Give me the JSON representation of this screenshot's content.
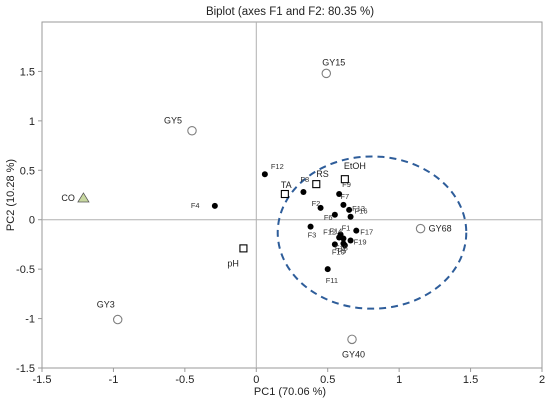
{
  "chart_data": {
    "type": "scatter",
    "title": "Biplot (axes F1 and F2: 80.35 %)",
    "xlabel": "PC1 (70.06 %)",
    "ylabel": "PC2 (10.28 %)",
    "xlim": [
      -1.5,
      2
    ],
    "ylim": [
      -1.5,
      2
    ],
    "xticks": [
      "-1.5",
      "-1",
      "-0.5",
      "0",
      "0.5",
      "1",
      "1.5",
      "2"
    ],
    "yticks": [
      "-1.5",
      "-1",
      "-0.5",
      "0",
      "0.5",
      "1",
      "1.5"
    ],
    "grid": false,
    "ellipse": {
      "cx": 0.81,
      "cy": -0.13,
      "rx": 0.66,
      "ry": 0.77,
      "style": "dashed",
      "color": "#2e5d9a"
    },
    "series": [
      {
        "marker": "filled-circle",
        "color": "#000000",
        "points": [
          {
            "label": "F1",
            "x": 0.59,
            "y": -0.15
          },
          {
            "label": "F2",
            "x": 0.45,
            "y": 0.12
          },
          {
            "label": "F3",
            "x": 0.38,
            "y": -0.07
          },
          {
            "label": "F4",
            "x": -0.29,
            "y": 0.14
          },
          {
            "label": "F5",
            "x": 0.61,
            "y": -0.24
          },
          {
            "label": "F6",
            "x": 0.55,
            "y": 0.05
          },
          {
            "label": "F7",
            "x": 0.61,
            "y": 0.15
          },
          {
            "label": "F8",
            "x": 0.33,
            "y": 0.28
          },
          {
            "label": "F9",
            "x": 0.58,
            "y": 0.26
          },
          {
            "label": "F10",
            "x": 0.55,
            "y": -0.25
          },
          {
            "label": "F11",
            "x": 0.5,
            "y": -0.5
          },
          {
            "label": "F12",
            "x": 0.06,
            "y": 0.46
          },
          {
            "label": "F12",
            "x": 0.58,
            "y": -0.18
          },
          {
            "label": "F13",
            "x": 0.65,
            "y": 0.1
          },
          {
            "label": "F14",
            "x": 0.61,
            "y": -0.19
          },
          {
            "label": "F16",
            "x": 0.66,
            "y": 0.03
          },
          {
            "label": "F17",
            "x": 0.7,
            "y": -0.11
          },
          {
            "label": "F18",
            "x": 0.62,
            "y": -0.26
          },
          {
            "label": "F19",
            "x": 0.66,
            "y": -0.21
          }
        ]
      },
      {
        "marker": "open-square",
        "color": "#000000",
        "points": [
          {
            "label": "TA",
            "x": 0.2,
            "y": 0.26
          },
          {
            "label": "RS",
            "x": 0.42,
            "y": 0.36
          },
          {
            "label": "EtOH",
            "x": 0.62,
            "y": 0.41
          },
          {
            "label": "pH",
            "x": -0.09,
            "y": -0.29
          }
        ]
      },
      {
        "marker": "open-circle",
        "color": "#7f7f7f",
        "points": [
          {
            "label": "GY15",
            "x": 0.49,
            "y": 1.48
          },
          {
            "label": "GY5",
            "x": -0.45,
            "y": 0.9
          },
          {
            "label": "GY68",
            "x": 1.15,
            "y": -0.09
          },
          {
            "label": "GY3",
            "x": -0.97,
            "y": -1.01
          },
          {
            "label": "GY40",
            "x": 0.67,
            "y": -1.21
          }
        ]
      },
      {
        "marker": "triangle",
        "color": "#c8d8a0",
        "points": [
          {
            "label": "CO",
            "x": -1.21,
            "y": 0.22
          }
        ]
      }
    ]
  }
}
